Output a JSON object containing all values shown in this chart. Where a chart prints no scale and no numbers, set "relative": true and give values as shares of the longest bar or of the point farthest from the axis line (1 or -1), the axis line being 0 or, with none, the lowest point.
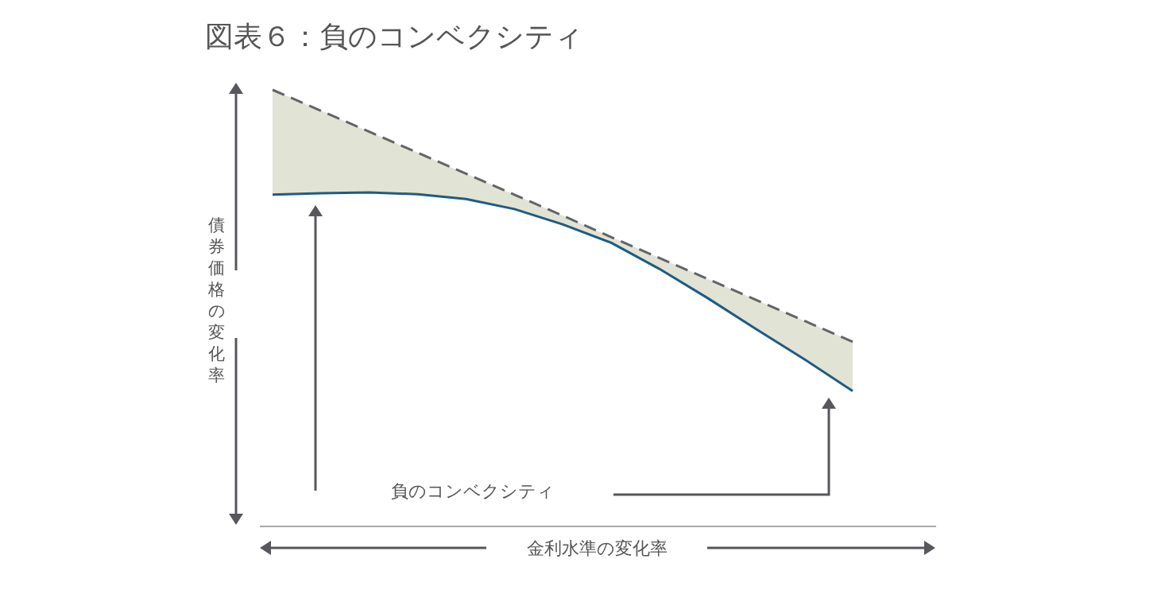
{
  "chart_data": {
    "type": "line",
    "relative": true,
    "title": "図表６：負のコンベクシティ",
    "xlabel": "金利水準の変化率",
    "ylabel": "債券価格の変化率",
    "categories": [
      null,
      null,
      null,
      null,
      null,
      null,
      null,
      null,
      null,
      null,
      null,
      null,
      null
    ],
    "series": [
      {
        "color": "#636468",
        "line_style": "dashed",
        "values": [
          1.0,
          0.952,
          0.904,
          0.856,
          0.808,
          0.76,
          0.712,
          0.663,
          0.615,
          0.567,
          0.519,
          0.471,
          0.423
        ],
        "upper": [
          1.0,
          0.952,
          0.904,
          0.856,
          0.808,
          0.76,
          0.712,
          0.663,
          0.615,
          0.567,
          0.519,
          0.471,
          0.423
        ],
        "lower": [
          0.76,
          0.763,
          0.765,
          0.761,
          0.75,
          0.727,
          0.692,
          0.65,
          0.59,
          0.523,
          0.452,
          0.383,
          0.31
        ]
      },
      {
        "color": "#1f5b85",
        "line_style": "solid",
        "values": [
          0.76,
          0.763,
          0.765,
          0.761,
          0.75,
          0.727,
          0.692,
          0.65,
          0.59,
          0.523,
          0.452,
          0.383,
          0.31
        ]
      }
    ],
    "annotations": [
      "負のコンベクシティ"
    ]
  }
}
